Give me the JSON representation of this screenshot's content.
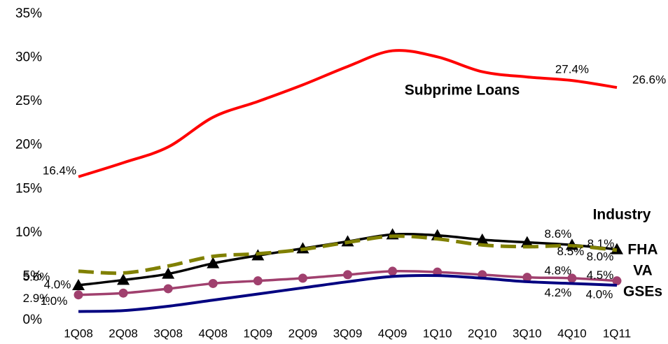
{
  "chart_data": {
    "type": "line",
    "categories": [
      "1Q08",
      "2Q08",
      "3Q08",
      "4Q08",
      "1Q09",
      "2Q09",
      "3Q09",
      "4Q09",
      "1Q10",
      "2Q10",
      "3Q10",
      "4Q10",
      "1Q11"
    ],
    "ylim": [
      0,
      35
    ],
    "yticks": [
      {
        "value": 0,
        "label": "0%"
      },
      {
        "value": 5,
        "label": "5%"
      },
      {
        "value": 10,
        "label": "10%"
      },
      {
        "value": 15,
        "label": "15%"
      },
      {
        "value": 20,
        "label": "20%"
      },
      {
        "value": 25,
        "label": "25%"
      },
      {
        "value": 30,
        "label": "30%"
      },
      {
        "value": 35,
        "label": "35%"
      }
    ],
    "series": [
      {
        "name": "Subprime Loans",
        "color": "#ff0000",
        "style": "solid",
        "marker": "none",
        "values": [
          16.4,
          18.0,
          19.8,
          23.2,
          25.0,
          26.9,
          29.0,
          30.8,
          30.1,
          28.4,
          27.8,
          27.4,
          26.6
        ],
        "value_labels": [
          "16.4%",
          null,
          null,
          null,
          null,
          null,
          null,
          null,
          null,
          null,
          null,
          "27.4%",
          "26.6%"
        ]
      },
      {
        "name": "Industry",
        "color": "#000000",
        "style": "solid",
        "marker": "triangle",
        "values": [
          4.0,
          4.6,
          5.3,
          6.5,
          7.4,
          8.2,
          9.0,
          9.8,
          9.7,
          9.2,
          8.9,
          8.6,
          8.1
        ],
        "value_labels": [
          "4.0%",
          null,
          null,
          null,
          null,
          null,
          null,
          null,
          null,
          null,
          null,
          "8.6%",
          "8.1%"
        ]
      },
      {
        "name": "FHA",
        "color": "#808000",
        "style": "dashed",
        "marker": "none",
        "values": [
          5.6,
          5.4,
          6.2,
          7.3,
          7.6,
          8.1,
          8.9,
          9.6,
          9.3,
          8.6,
          8.4,
          8.5,
          8.0
        ],
        "value_labels": [
          "5.6%",
          null,
          null,
          null,
          null,
          null,
          null,
          null,
          null,
          null,
          null,
          "8.5%",
          "8.0%"
        ]
      },
      {
        "name": "VA",
        "color": "#a0406e",
        "style": "solid",
        "marker": "circle",
        "values": [
          2.9,
          3.1,
          3.6,
          4.2,
          4.5,
          4.8,
          5.2,
          5.6,
          5.5,
          5.2,
          4.9,
          4.8,
          4.5
        ],
        "value_labels": [
          "2.9%",
          null,
          null,
          null,
          null,
          null,
          null,
          null,
          null,
          null,
          null,
          "4.8%",
          "4.5%"
        ]
      },
      {
        "name": "GSEs",
        "color": "#000080",
        "style": "solid",
        "marker": "none",
        "values": [
          1.0,
          1.1,
          1.6,
          2.3,
          3.0,
          3.7,
          4.4,
          5.0,
          5.1,
          4.8,
          4.4,
          4.2,
          4.0
        ],
        "value_labels": [
          "1.0%",
          null,
          null,
          null,
          null,
          null,
          null,
          null,
          null,
          null,
          null,
          "4.2%",
          "4.0%"
        ]
      }
    ]
  }
}
